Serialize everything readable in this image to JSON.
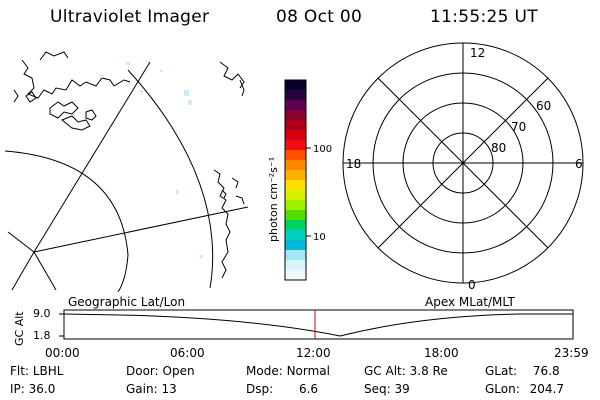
{
  "header": {
    "instrument": "Ultraviolet Imager",
    "date": "08 Oct 00",
    "time": "11:55:25 UT"
  },
  "colorbar": {
    "unit_label": "photon cm⁻²s⁻¹",
    "ticks": [
      "100",
      "10"
    ],
    "colors": [
      "#0a0030",
      "#2a0040",
      "#600050",
      "#8a0030",
      "#b00018",
      "#d80010",
      "#f01010",
      "#ff5000",
      "#ff8800",
      "#ffb000",
      "#ffe000",
      "#d8f000",
      "#a0f000",
      "#50e000",
      "#00d060",
      "#00d0c0",
      "#00b8d8",
      "#a0e8ee",
      "#d8f4f6",
      "#f0f8fa"
    ]
  },
  "polar_plot": {
    "mlt_labels": {
      "top": "12",
      "left": "18",
      "right": "6",
      "bottom": "0"
    },
    "lat_labels": [
      "60",
      "70",
      "80"
    ]
  },
  "timeline": {
    "left_title": "Geographic Lat/Lon",
    "right_title": "Apex MLat/MLT",
    "y_axis_label": "GC Alt",
    "y_ticks": [
      "9.0",
      "1.8"
    ],
    "x_ticks": [
      "00:00",
      "06:00",
      "12:00",
      "18:00",
      "23:59"
    ]
  },
  "footer": {
    "row1": [
      {
        "label": "Flt:",
        "value": "LBHL"
      },
      {
        "label": "Door:",
        "value": "Open"
      },
      {
        "label": "Mode:",
        "value": "Normal"
      },
      {
        "label": "GC Alt:",
        "value": "3.8 Re"
      },
      {
        "label": "GLat:",
        "value": "76.8"
      }
    ],
    "row2": [
      {
        "label": "IP:",
        "value": "36.0"
      },
      {
        "label": "Gain:",
        "value": "13"
      },
      {
        "label": "Dsp:",
        "value": "6.6"
      },
      {
        "label": "Seq:",
        "value": "39"
      },
      {
        "label": "GLon:",
        "value": "204.7"
      }
    ]
  }
}
